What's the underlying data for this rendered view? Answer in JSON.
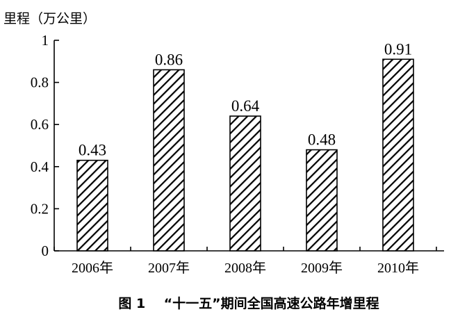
{
  "chart_data": {
    "type": "bar",
    "ylabel": "里程（万公里）",
    "categories": [
      "2006年",
      "2007年",
      "2008年",
      "2009年",
      "2010年"
    ],
    "values": [
      0.43,
      0.86,
      0.64,
      0.48,
      0.91
    ],
    "data_labels": [
      "0.43",
      "0.86",
      "0.64",
      "0.48",
      "0.91"
    ],
    "yticks": [
      "0",
      "0.2",
      "0.4",
      "0.6",
      "0.8",
      "1"
    ],
    "ylim": [
      0,
      1
    ],
    "grid": false,
    "caption": "图 1    “十一五”期间全国高速公路年增里程",
    "bar_fill": "diagonal-hatch",
    "colors": {
      "ink": "#000000",
      "background": "#ffffff"
    }
  }
}
